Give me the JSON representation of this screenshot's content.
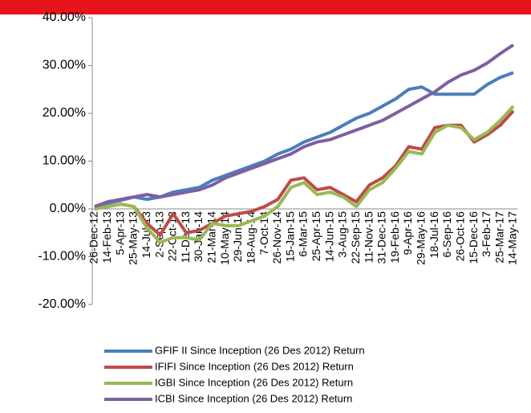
{
  "chart_data": {
    "type": "line",
    "categories": [
      "26-Dec-12",
      "14-Feb-13",
      "5-Apr-13",
      "25-May-13",
      "14-Jul-13",
      "2-Sep-13",
      "22-Oct-13",
      "11-Dec-13",
      "30-Jan-14",
      "21-Mar-14",
      "10-May-14",
      "29-Jun-14",
      "18-Aug-14",
      "7-Oct-14",
      "26-Nov-14",
      "15-Jan-15",
      "6-Mar-15",
      "25-Apr-15",
      "14-Jun-15",
      "3-Aug-15",
      "22-Sep-15",
      "11-Nov-15",
      "31-Dec-15",
      "19-Feb-16",
      "9-Apr-16",
      "29-May-16",
      "18-Jul-16",
      "6-Sep-16",
      "26-Oct-16",
      "15-Dec-16",
      "3-Feb-17",
      "25-Mar-17",
      "14-May-17"
    ],
    "series": [
      {
        "name": "GFIF II Since Inception (26 Des 2012) Return",
        "color": "#4a7ebb",
        "values": [
          0.3,
          1.2,
          1.8,
          2.5,
          2.0,
          2.5,
          3.5,
          4.0,
          4.5,
          6.0,
          7.0,
          8.0,
          9.0,
          10.0,
          11.5,
          12.5,
          14.0,
          15.0,
          16.0,
          17.5,
          19.0,
          20.0,
          21.5,
          23.0,
          25.0,
          25.5,
          24.0,
          24.0,
          24.0,
          24.0,
          26.0,
          27.5,
          28.5
        ]
      },
      {
        "name": "IFIFI Since Inception (26 Des 2012) Return",
        "color": "#be4b48",
        "values": [
          0,
          0.5,
          1.0,
          0.5,
          -3.0,
          -5.5,
          -1.0,
          -5.0,
          -4.5,
          -3.0,
          -1.5,
          -1.0,
          -0.5,
          0.5,
          2.0,
          6.0,
          6.5,
          4.0,
          4.5,
          3.0,
          1.5,
          5.0,
          6.5,
          9.0,
          13.0,
          12.5,
          17.0,
          17.5,
          17.5,
          14.0,
          15.5,
          17.5,
          20.5
        ]
      },
      {
        "name": "IGBI Since Inception (26 Des 2012) Return",
        "color": "#98b954",
        "values": [
          0,
          0.5,
          1.0,
          0.5,
          -4.0,
          -7.0,
          -6.0,
          -6.0,
          -6.5,
          -3.0,
          -3.5,
          -3.5,
          -2.5,
          -1.5,
          0.5,
          4.5,
          5.5,
          3.0,
          3.5,
          2.5,
          0.5,
          4.0,
          5.5,
          8.5,
          12.0,
          11.5,
          16.0,
          17.5,
          17.0,
          14.5,
          16.0,
          18.5,
          21.5
        ]
      },
      {
        "name": "ICBI Since Inception (26 Des 2012) Return",
        "color": "#7d60a0",
        "values": [
          0.5,
          1.5,
          2.0,
          2.5,
          3.0,
          2.5,
          3.0,
          3.5,
          4.0,
          5.0,
          6.5,
          7.5,
          8.5,
          9.5,
          10.5,
          11.5,
          13.0,
          14.0,
          14.5,
          15.5,
          16.5,
          17.5,
          18.5,
          20.0,
          21.5,
          23.0,
          24.5,
          26.5,
          28.0,
          29.0,
          30.5,
          32.5,
          34.3
        ]
      }
    ],
    "ylim": [
      -20,
      40
    ],
    "yticks": [
      {
        "value": -20,
        "label": "-20.00%"
      },
      {
        "value": -10,
        "label": "-10.00%"
      },
      {
        "value": 0,
        "label": "0.00%"
      },
      {
        "value": 10,
        "label": "10.00%"
      },
      {
        "value": 20,
        "label": "20.00%"
      },
      {
        "value": 30,
        "label": "30.00%"
      },
      {
        "value": 40,
        "label": "40.00%"
      }
    ],
    "legend": "bottom"
  }
}
